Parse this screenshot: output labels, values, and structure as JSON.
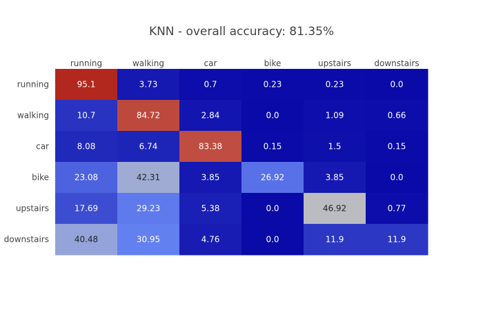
{
  "chart_data": {
    "type": "heatmap",
    "title": "KNN - overall accuracy: 81.35%",
    "xlabel": "",
    "ylabel": "",
    "x_categories": [
      "running",
      "walking",
      "car",
      "bike",
      "upstairs",
      "downstairs"
    ],
    "y_categories": [
      "running",
      "walking",
      "car",
      "bike",
      "upstairs",
      "downstairs"
    ],
    "values": [
      [
        95.1,
        3.73,
        0.7,
        0.23,
        0.23,
        0.0
      ],
      [
        10.7,
        84.72,
        2.84,
        0.0,
        1.09,
        0.66
      ],
      [
        8.08,
        6.74,
        83.38,
        0.15,
        1.5,
        0.15
      ],
      [
        23.08,
        42.31,
        3.85,
        26.92,
        3.85,
        0.0
      ],
      [
        17.69,
        29.23,
        5.38,
        0.0,
        46.92,
        0.77
      ],
      [
        40.48,
        30.95,
        4.76,
        0.0,
        11.9,
        11.9
      ]
    ],
    "value_labels": [
      [
        "95.1",
        "3.73",
        "0.7",
        "0.23",
        "0.23",
        "0.0"
      ],
      [
        "10.7",
        "84.72",
        "2.84",
        "0.0",
        "1.09",
        "0.66"
      ],
      [
        "8.08",
        "6.74",
        "83.38",
        "0.15",
        "1.5",
        "0.15"
      ],
      [
        "23.08",
        "42.31",
        "3.85",
        "26.92",
        "3.85",
        "0.0"
      ],
      [
        "17.69",
        "29.23",
        "5.38",
        "0.0",
        "46.92",
        "0.77"
      ],
      [
        "40.48",
        "30.95",
        "4.76",
        "0.0",
        "11.9",
        "11.9"
      ]
    ],
    "x_axis_side": "top",
    "colorscale": [
      [
        0.0,
        "#0a0aa8"
      ],
      [
        0.35,
        "#6a89f7"
      ],
      [
        0.5,
        "#bebebe"
      ],
      [
        0.6,
        "#dca091"
      ],
      [
        1.0,
        "#b2281e"
      ]
    ],
    "zrange": [
      0,
      95.1
    ],
    "text_colors": {
      "on_dark": "#ffffff",
      "on_light": "#222222"
    },
    "showscale": false
  }
}
